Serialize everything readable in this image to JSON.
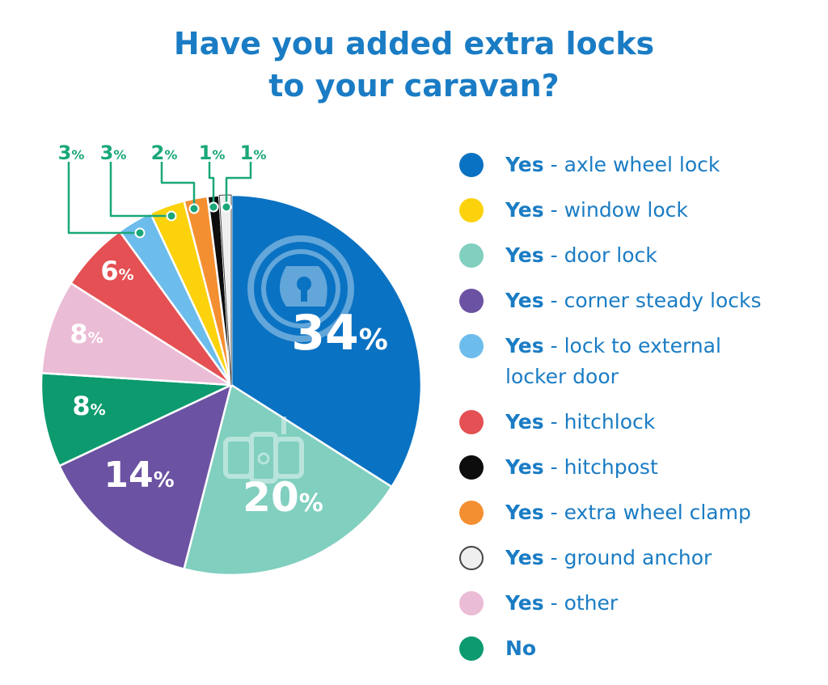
{
  "title": {
    "line1": "Have you added extra locks",
    "line2": "to your caravan?"
  },
  "chart_data": {
    "type": "pie",
    "title": "Have you added extra locks to your caravan?",
    "slices": [
      {
        "prefix": "Yes",
        "desc": "axle wheel lock",
        "value": 34,
        "label": "34",
        "color": "#0a72c2",
        "icon": "wheel-lock-icon"
      },
      {
        "prefix": "Yes",
        "desc": "door lock",
        "value": 20,
        "label": "20",
        "color": "#80cfbf",
        "icon": "door-lock-icon"
      },
      {
        "prefix": "Yes",
        "desc": "corner steady locks",
        "value": 14,
        "label": "14",
        "color": "#6b52a2"
      },
      {
        "prefix": "No",
        "desc": "",
        "value": 8,
        "label": "8",
        "color": "#0c9a6e"
      },
      {
        "prefix": "Yes",
        "desc": "other",
        "value": 8,
        "label": "8",
        "color": "#ebbcd5"
      },
      {
        "prefix": "Yes",
        "desc": "hitchlock",
        "value": 6,
        "label": "6",
        "color": "#e45053"
      },
      {
        "prefix": "Yes",
        "desc": "lock to external locker door",
        "value": 3,
        "label": "3",
        "color": "#6cbcec"
      },
      {
        "prefix": "Yes",
        "desc": "window lock",
        "value": 3,
        "label": "3",
        "color": "#fbd20c"
      },
      {
        "prefix": "Yes",
        "desc": "extra wheel clamp",
        "value": 2,
        "label": "2",
        "color": "#f48f31"
      },
      {
        "prefix": "Yes",
        "desc": "hitchpost",
        "value": 1,
        "label": "1",
        "color": "#0d0d0d"
      },
      {
        "prefix": "Yes",
        "desc": "ground anchor",
        "value": 1,
        "label": "1",
        "color": "#efefef",
        "border": "#444444"
      }
    ],
    "percent_sign": "%",
    "leader_color": "#1aa77a",
    "legend_placement": "right"
  },
  "legend": {
    "separator": "-",
    "items": [
      {
        "bold": "Yes",
        "text": "axle wheel lock",
        "color": "#0a72c2"
      },
      {
        "bold": "Yes",
        "text": "window lock",
        "color": "#fbd20c"
      },
      {
        "bold": "Yes",
        "text": "door lock",
        "color": "#80cfbf"
      },
      {
        "bold": "Yes",
        "text": "corner steady locks",
        "color": "#6b52a2"
      },
      {
        "bold": "Yes",
        "text": "lock to external",
        "text2": "locker door",
        "color": "#6cbcec"
      },
      {
        "bold": "Yes",
        "text": "hitchlock",
        "color": "#e45053"
      },
      {
        "bold": "Yes",
        "text": "hitchpost",
        "color": "#0d0d0d"
      },
      {
        "bold": "Yes",
        "text": "extra wheel clamp",
        "color": "#f48f31"
      },
      {
        "bold": "Yes",
        "text": "ground anchor",
        "color": "#efefef",
        "border": "#444444"
      },
      {
        "bold": "Yes",
        "text": "other",
        "color": "#ebbcd5"
      },
      {
        "bold": "No",
        "text": "",
        "color": "#0c9a6e"
      }
    ]
  }
}
